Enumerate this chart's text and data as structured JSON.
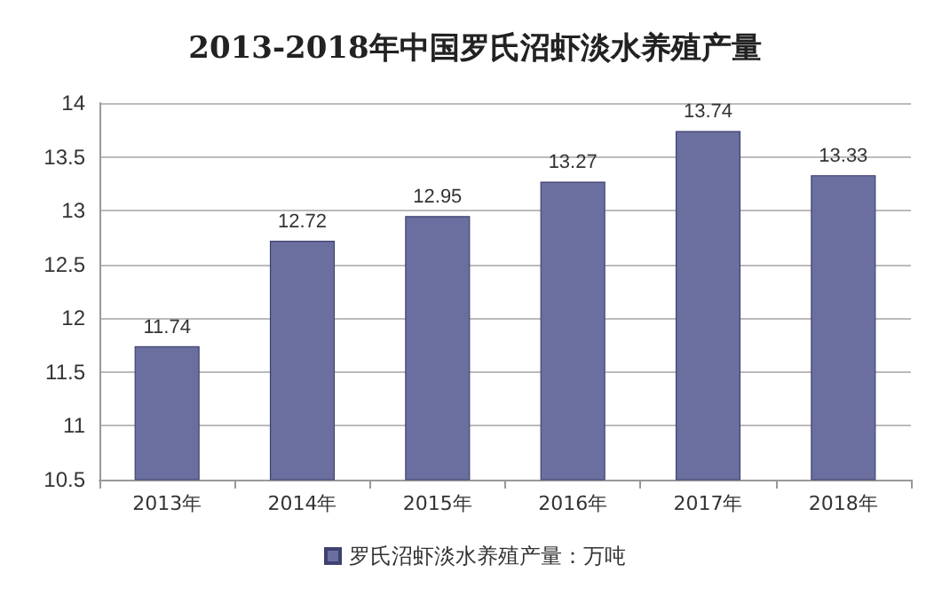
{
  "chart_data": {
    "type": "bar",
    "title": "2013-2018年中国罗氏沼虾淡水养殖产量",
    "categories": [
      "2013年",
      "2014年",
      "2015年",
      "2016年",
      "2017年",
      "2018年"
    ],
    "series": [
      {
        "name": "罗氏沼虾淡水养殖产量：万吨",
        "color": "#6b6f9f",
        "values": [
          11.74,
          12.72,
          12.95,
          13.27,
          13.74,
          13.33
        ]
      }
    ],
    "ylim": [
      10.5,
      14
    ],
    "yticks": [
      10.5,
      11,
      11.5,
      12,
      12.5,
      13,
      13.5,
      14
    ],
    "grid": "y",
    "legend": "bottom",
    "data_labels": true
  }
}
